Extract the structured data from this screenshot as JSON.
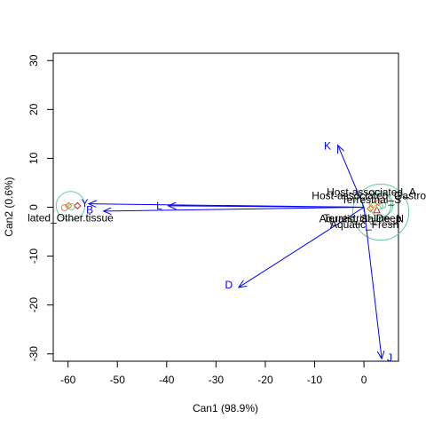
{
  "chart_data": {
    "type": "scatter",
    "title": "",
    "xlabel": "Can1 (98.9%)",
    "ylabel": "Can2 (0.6%)",
    "xlim": [
      -63,
      7
    ],
    "ylim": [
      -31.5,
      31.5
    ],
    "xticks": [
      "-60",
      "-50",
      "-40",
      "-30",
      "-20",
      "-10",
      "0"
    ],
    "yticks": [
      "-30",
      "-20",
      "-10",
      "0",
      "10",
      "20",
      "30"
    ],
    "grid": false,
    "vectors": [
      {
        "name": "K",
        "x": -5.3,
        "y": 12.7,
        "label_x": -7.4,
        "label_y": 12.5
      },
      {
        "name": "Y",
        "x": -55.8,
        "y": 0.7,
        "label_x": -56.6,
        "label_y": 0.8
      },
      {
        "name": "B",
        "x": -52.8,
        "y": -0.8,
        "label_x": -55.6,
        "label_y": -0.5
      },
      {
        "name": "L",
        "x": -39.7,
        "y": 0.3,
        "label_x": -41.5,
        "label_y": 0.3
      },
      {
        "name": "D",
        "x": -25.4,
        "y": -16.4,
        "label_x": -27.4,
        "label_y": -15.9
      },
      {
        "name": "J",
        "x": 3.6,
        "y": -31.0,
        "label_x": 5.2,
        "label_y": -30.8
      }
    ],
    "groups": [
      {
        "x": -59.5,
        "y": 0.3,
        "radius": 2.9,
        "color": "#66cc99"
      },
      {
        "x": 2.6,
        "y": 0.5,
        "radius": 2.9,
        "color": "#66cc99"
      },
      {
        "x": 3.5,
        "y": 0.5,
        "radius": 2.4,
        "color": "#66cc99"
      },
      {
        "x": 3.4,
        "y": -1.0,
        "radius": 5.7,
        "color": "#66cc99"
      }
    ],
    "points": [
      {
        "x": -59.9,
        "y": 0.3,
        "color": "#e07020",
        "shape": "diamond"
      },
      {
        "x": -58.1,
        "y": 0.3,
        "color": "#d02020",
        "shape": "diamond"
      },
      {
        "x": -60.7,
        "y": -0.1,
        "color": "#e08040",
        "shape": "circle"
      },
      {
        "x": -59.3,
        "y": 0.1,
        "color": "#66cc99",
        "shape": "circle"
      },
      {
        "x": 2.0,
        "y": 0.6,
        "color": "#f0a020",
        "shape": "diamond"
      },
      {
        "x": 2.6,
        "y": -0.5,
        "color": "#d02020",
        "shape": "triangle"
      },
      {
        "x": 3.2,
        "y": 0.2,
        "color": "#66cc99",
        "shape": "circle"
      },
      {
        "x": 3.8,
        "y": 0.4,
        "color": "#66cc99",
        "shape": "circle"
      },
      {
        "x": 2.9,
        "y": 1.0,
        "color": "#e08040",
        "shape": "diamond"
      },
      {
        "x": 1.3,
        "y": -0.3,
        "color": "#e07020",
        "shape": "diamond"
      }
    ],
    "site_labels": [
      {
        "text": "lated_Other.tissue",
        "x": -59.5,
        "y": -2.2,
        "anchor": "middle"
      },
      {
        "text": "Host-associated_A",
        "x": 1.5,
        "y": 3.1,
        "anchor": "middle"
      },
      {
        "text": "Host-associated_Gastro",
        "x": 1.0,
        "y": 2.4,
        "anchor": "middle"
      },
      {
        "text": "Terrestrial_S",
        "x": 1.5,
        "y": 1.5,
        "anchor": "middle"
      },
      {
        "text": "Aquatic_Saline_N",
        "x": -0.5,
        "y": -2.4,
        "anchor": "middle"
      },
      {
        "text": "Terrestrial_Deep",
        "x": -0.3,
        "y": -2.3,
        "anchor": "middle"
      },
      {
        "text": "Aquatic_Fresh",
        "x": 0.1,
        "y": -3.5,
        "anchor": "middle"
      }
    ]
  }
}
